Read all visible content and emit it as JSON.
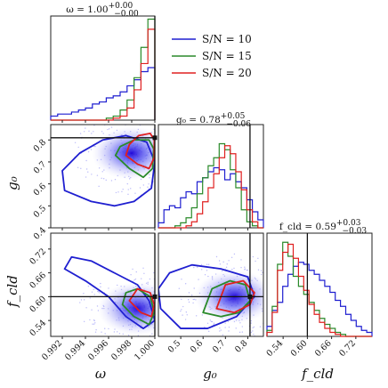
{
  "chart_data": {
    "type": "corner",
    "parameters": [
      {
        "name": "omega",
        "label": "ω",
        "range": [
          0.991,
          1.0
        ],
        "truth": 1.0,
        "ticks": [
          "0.992",
          "0.994",
          "0.996",
          "0.998",
          "1.000"
        ],
        "tick_values": [
          0.992,
          0.994,
          0.996,
          0.998,
          1.0
        ]
      },
      {
        "name": "g0",
        "label": "g",
        "label_sub": "0",
        "range": [
          0.4,
          0.87
        ],
        "truth": 0.81,
        "ticks": [
          "0.5",
          "0.6",
          "0.7",
          "0.8"
        ],
        "tick_values": [
          0.5,
          0.6,
          0.7,
          0.8
        ],
        "ticks_left": [
          "0.4",
          "0.5",
          "0.6",
          "0.7",
          "0.8"
        ],
        "tick_values_left": [
          0.4,
          0.5,
          0.6,
          0.7,
          0.8
        ]
      },
      {
        "name": "fcld",
        "label": "f",
        "label_sub": "cld",
        "range": [
          0.5,
          0.76
        ],
        "truth": 0.6,
        "ticks": [
          "0.54",
          "0.60",
          "0.66",
          "0.72"
        ],
        "tick_values": [
          0.54,
          0.6,
          0.66,
          0.72
        ]
      }
    ],
    "titles": [
      {
        "prefix": "ω = 1.00",
        "sup": "+0.00",
        "sub": "−0.00"
      },
      {
        "prefix": "g₀ = 0.78",
        "sup": "+0.05",
        "sub": "−0.06"
      },
      {
        "prefix": "f_cld = 0.59",
        "sup": "+0.03",
        "sub": "−0.03"
      }
    ],
    "legend_placement": "top-right",
    "series": [
      {
        "name": "S/N = 10",
        "color": "#1f1fd0",
        "hist_omega": [
          0.04,
          0.06,
          0.06,
          0.08,
          0.1,
          0.12,
          0.16,
          0.18,
          0.22,
          0.24,
          0.28,
          0.34,
          0.4,
          0.48,
          0.52
        ],
        "hist_g0": [
          0.05,
          0.18,
          0.22,
          0.2,
          0.3,
          0.36,
          0.34,
          0.46,
          0.5,
          0.56,
          0.6,
          0.58,
          0.48,
          0.54,
          0.46,
          0.4,
          0.28,
          0.16,
          0.08
        ],
        "hist_fcld": [
          0.1,
          0.26,
          0.34,
          0.5,
          0.62,
          0.7,
          0.74,
          0.72,
          0.66,
          0.62,
          0.56,
          0.5,
          0.44,
          0.36,
          0.3,
          0.22,
          0.16,
          0.1,
          0.06,
          0.04
        ]
      },
      {
        "name": "S/N = 15",
        "color": "#2a8a2a",
        "hist_omega": [
          0.0,
          0.0,
          0.0,
          0.0,
          0.0,
          0.0,
          0.0,
          0.0,
          0.02,
          0.04,
          0.1,
          0.2,
          0.42,
          0.72,
          1.0
        ],
        "hist_g0": [
          0.0,
          0.0,
          0.0,
          0.02,
          0.05,
          0.1,
          0.2,
          0.34,
          0.5,
          0.62,
          0.7,
          0.84,
          0.78,
          0.58,
          0.4,
          0.18,
          0.06,
          0.02,
          0.0
        ],
        "hist_fcld": [
          0.06,
          0.3,
          0.72,
          0.94,
          0.8,
          0.6,
          0.5,
          0.42,
          0.34,
          0.26,
          0.18,
          0.12,
          0.08,
          0.04,
          0.02,
          0.0,
          0.0,
          0.0,
          0.0,
          0.0
        ]
      },
      {
        "name": "S/N = 20",
        "color": "#e02020",
        "hist_omega": [
          0.0,
          0.0,
          0.0,
          0.0,
          0.0,
          0.0,
          0.0,
          0.0,
          0.0,
          0.02,
          0.04,
          0.12,
          0.3,
          0.56,
          0.9
        ],
        "hist_g0": [
          0.0,
          0.0,
          0.0,
          0.0,
          0.0,
          0.02,
          0.06,
          0.14,
          0.26,
          0.4,
          0.54,
          0.7,
          0.82,
          0.74,
          0.56,
          0.38,
          0.18,
          0.06,
          0.0
        ],
        "hist_fcld": [
          0.04,
          0.24,
          0.66,
          0.84,
          0.92,
          0.78,
          0.6,
          0.46,
          0.32,
          0.22,
          0.14,
          0.08,
          0.04,
          0.02,
          0.0,
          0.0,
          0.0,
          0.0,
          0.0,
          0.0
        ]
      }
    ],
    "contours": {
      "g0_vs_omega": {
        "S/N = 10": [
          [
            0.9922,
            0.57
          ],
          [
            0.9945,
            0.52
          ],
          [
            0.9965,
            0.5
          ],
          [
            0.9982,
            0.52
          ],
          [
            0.9997,
            0.58
          ],
          [
            1.0,
            0.7
          ],
          [
            0.9993,
            0.79
          ],
          [
            0.9975,
            0.82
          ],
          [
            0.9955,
            0.8
          ],
          [
            0.9935,
            0.74
          ],
          [
            0.992,
            0.66
          ]
        ],
        "S/N = 15": [
          [
            0.9966,
            0.73
          ],
          [
            0.9978,
            0.67
          ],
          [
            0.999,
            0.63
          ],
          [
            0.9998,
            0.67
          ],
          [
            0.9999,
            0.76
          ],
          [
            0.9995,
            0.8
          ],
          [
            0.9982,
            0.8
          ],
          [
            0.997,
            0.77
          ]
        ],
        "S/N = 20": [
          [
            0.9975,
            0.73
          ],
          [
            0.9985,
            0.69
          ],
          [
            0.9995,
            0.67
          ],
          [
            0.99995,
            0.72
          ],
          [
            0.99995,
            0.8
          ],
          [
            0.9996,
            0.83
          ],
          [
            0.9986,
            0.82
          ],
          [
            0.9978,
            0.78
          ]
        ]
      },
      "fcld_vs_omega": {
        "S/N = 10": [
          [
            0.9922,
            0.67
          ],
          [
            0.994,
            0.64
          ],
          [
            0.996,
            0.6
          ],
          [
            0.9975,
            0.55
          ],
          [
            0.999,
            0.52
          ],
          [
            1.0,
            0.54
          ],
          [
            0.9995,
            0.59
          ],
          [
            0.9985,
            0.63
          ],
          [
            0.9965,
            0.66
          ],
          [
            0.9945,
            0.69
          ],
          [
            0.9928,
            0.7
          ]
        ],
        "S/N = 15": [
          [
            0.9972,
            0.58
          ],
          [
            0.9982,
            0.55
          ],
          [
            0.9995,
            0.53
          ],
          [
            0.99995,
            0.56
          ],
          [
            0.9996,
            0.6
          ],
          [
            0.9985,
            0.62
          ],
          [
            0.9975,
            0.61
          ]
        ],
        "S/N = 20": [
          [
            0.9978,
            0.59
          ],
          [
            0.9988,
            0.56
          ],
          [
            0.9997,
            0.55
          ],
          [
            0.99995,
            0.58
          ],
          [
            0.9996,
            0.61
          ],
          [
            0.9985,
            0.62
          ]
        ]
      },
      "fcld_vs_g0": {
        "S/N = 10": [
          [
            0.41,
            0.57
          ],
          [
            0.5,
            0.52
          ],
          [
            0.62,
            0.52
          ],
          [
            0.75,
            0.55
          ],
          [
            0.83,
            0.6
          ],
          [
            0.8,
            0.65
          ],
          [
            0.68,
            0.67
          ],
          [
            0.55,
            0.68
          ],
          [
            0.45,
            0.66
          ],
          [
            0.4,
            0.62
          ]
        ],
        "S/N = 15": [
          [
            0.6,
            0.56
          ],
          [
            0.68,
            0.55
          ],
          [
            0.76,
            0.56
          ],
          [
            0.81,
            0.59
          ],
          [
            0.79,
            0.63
          ],
          [
            0.72,
            0.64
          ],
          [
            0.64,
            0.62
          ]
        ],
        "S/N = 20": [
          [
            0.66,
            0.57
          ],
          [
            0.74,
            0.56
          ],
          [
            0.81,
            0.58
          ],
          [
            0.83,
            0.61
          ],
          [
            0.78,
            0.64
          ],
          [
            0.7,
            0.63
          ]
        ]
      }
    },
    "density_peaks": {
      "g0_vs_omega": [
        0.998,
        0.74
      ],
      "fcld_vs_omega": [
        0.9985,
        0.57
      ],
      "fcld_vs_g0": [
        0.74,
        0.6
      ]
    },
    "axis_labels": {
      "x": [
        "ω",
        "g₀",
        "f_cld"
      ],
      "y": [
        "g₀",
        "f_cld"
      ]
    }
  }
}
